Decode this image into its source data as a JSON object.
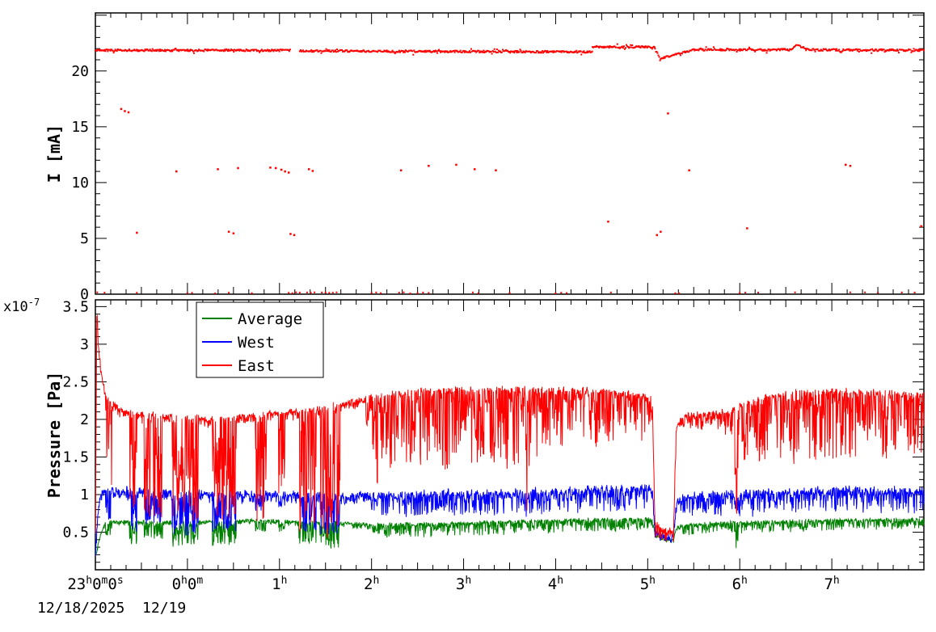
{
  "footer": {
    "date_label": "12/18/2025  12/19"
  },
  "colors": {
    "frame": "#000000",
    "background": "#ffffff",
    "east": "#ff0000",
    "west": "#0000ff",
    "average": "#008000"
  },
  "xaxis": {
    "xlim": [
      -1,
      8
    ],
    "labels": [
      {
        "x": -1,
        "parts": [
          [
            "23",
            0
          ],
          [
            "h",
            1
          ],
          [
            "0",
            0
          ],
          [
            "m",
            1
          ],
          [
            "0",
            0
          ],
          [
            "s",
            1
          ]
        ]
      },
      {
        "x": 0,
        "parts": [
          [
            "0",
            0
          ],
          [
            "h",
            1
          ],
          [
            "0",
            0
          ],
          [
            "m",
            1
          ]
        ]
      },
      {
        "x": 1,
        "parts": [
          [
            "1",
            0
          ],
          [
            "h",
            1
          ]
        ]
      },
      {
        "x": 2,
        "parts": [
          [
            "2",
            0
          ],
          [
            "h",
            1
          ]
        ]
      },
      {
        "x": 3,
        "parts": [
          [
            "3",
            0
          ],
          [
            "h",
            1
          ]
        ]
      },
      {
        "x": 4,
        "parts": [
          [
            "4",
            0
          ],
          [
            "h",
            1
          ]
        ]
      },
      {
        "x": 5,
        "parts": [
          [
            "5",
            0
          ],
          [
            "h",
            1
          ]
        ]
      },
      {
        "x": 6,
        "parts": [
          [
            "6",
            0
          ],
          [
            "h",
            1
          ]
        ]
      },
      {
        "x": 7,
        "parts": [
          [
            "7",
            0
          ],
          [
            "h",
            1
          ]
        ]
      }
    ]
  },
  "chart_data": [
    {
      "type": "scatter",
      "title": "",
      "ylabel": "I [mA]",
      "ylim": [
        0,
        25.2
      ],
      "yticks": [
        {
          "v": 0,
          "label": "0"
        },
        {
          "v": 5,
          "label": "5"
        },
        {
          "v": 10,
          "label": "10"
        },
        {
          "v": 15,
          "label": "15"
        },
        {
          "v": 20,
          "label": "20"
        }
      ],
      "color": "#ff0000",
      "band_noise": 0.09,
      "band_segments": [
        [
          -1.0,
          1.12,
          21.85,
          21.85
        ],
        [
          1.22,
          4.4,
          21.8,
          21.7
        ],
        [
          4.4,
          5.08,
          22.15,
          22.15
        ],
        [
          5.08,
          5.14,
          21.9,
          21.1
        ],
        [
          5.14,
          5.5,
          21.1,
          21.9
        ],
        [
          5.5,
          6.55,
          21.9,
          21.9
        ],
        [
          6.55,
          6.62,
          21.95,
          22.3
        ],
        [
          6.62,
          6.72,
          22.3,
          22.0
        ],
        [
          6.72,
          8.0,
          21.9,
          21.85
        ]
      ],
      "outliers": [
        [
          -0.72,
          16.6
        ],
        [
          -0.68,
          16.4
        ],
        [
          -0.64,
          16.3
        ],
        [
          -0.55,
          5.5
        ],
        [
          -0.12,
          11.0
        ],
        [
          0.33,
          11.2
        ],
        [
          0.45,
          5.6
        ],
        [
          0.5,
          5.45
        ],
        [
          0.55,
          11.3
        ],
        [
          0.9,
          11.35
        ],
        [
          0.96,
          11.3
        ],
        [
          1.02,
          11.15
        ],
        [
          1.06,
          11.0
        ],
        [
          1.1,
          10.9
        ],
        [
          1.12,
          5.4
        ],
        [
          1.16,
          5.3
        ],
        [
          1.32,
          11.2
        ],
        [
          1.36,
          11.05
        ],
        [
          2.32,
          11.1
        ],
        [
          2.62,
          11.5
        ],
        [
          2.92,
          11.6
        ],
        [
          3.12,
          11.2
        ],
        [
          3.35,
          11.1
        ],
        [
          4.57,
          6.5
        ],
        [
          5.1,
          5.3
        ],
        [
          5.14,
          5.6
        ],
        [
          5.22,
          16.2
        ],
        [
          5.45,
          11.1
        ],
        [
          6.08,
          5.9
        ],
        [
          7.15,
          11.6
        ],
        [
          7.2,
          11.5
        ],
        [
          7.97,
          6.1
        ]
      ],
      "zero_y": 0.12,
      "zero_points": [
        -0.98,
        -0.9,
        -0.55,
        0.0,
        0.05,
        0.3,
        0.45,
        0.7,
        1.1,
        1.14,
        1.18,
        1.22,
        1.3,
        1.34,
        1.38,
        1.46,
        1.5,
        1.54,
        1.58,
        1.62,
        2.0,
        2.05,
        2.1,
        2.3,
        2.35,
        2.42,
        2.5,
        2.56,
        2.62,
        3.1,
        3.16,
        3.5,
        4.0,
        4.06,
        4.12,
        4.6,
        5.3,
        5.34,
        6.0,
        6.06,
        6.2,
        6.6,
        7.2,
        7.36,
        7.5,
        7.76,
        7.9
      ]
    },
    {
      "type": "line",
      "title": "",
      "ylabel": "Pressure [Pa]",
      "scale_parts": [
        [
          "x10",
          0
        ],
        [
          "-7",
          1
        ]
      ],
      "ylim": [
        0,
        3.59
      ],
      "yticks": [
        {
          "v": 0.5,
          "label": "0.5"
        },
        {
          "v": 1.0,
          "label": "1"
        },
        {
          "v": 1.5,
          "label": "1.5"
        },
        {
          "v": 2.0,
          "label": "2"
        },
        {
          "v": 2.5,
          "label": "2.5"
        },
        {
          "v": 3.0,
          "label": "3"
        },
        {
          "v": 3.5,
          "label": "3.5"
        }
      ],
      "legend": [
        {
          "label": "Average",
          "color": "#008000"
        },
        {
          "label": "West",
          "color": "#0000ff"
        },
        {
          "label": "East",
          "color": "#ff0000"
        }
      ],
      "series": [
        {
          "name": "Average",
          "color": "#008000",
          "noise_up": 0.025,
          "trend": [
            [
              -1.0,
              0.2
            ],
            [
              -0.985,
              0.25
            ],
            [
              -0.95,
              0.45
            ],
            [
              -0.9,
              0.6
            ],
            [
              -0.85,
              0.64
            ],
            [
              0,
              0.63
            ],
            [
              0.7,
              0.66
            ],
            [
              1.2,
              0.64
            ],
            [
              1.7,
              0.62
            ],
            [
              2.0,
              0.6
            ],
            [
              3.0,
              0.62
            ],
            [
              4.0,
              0.66
            ],
            [
              5.05,
              0.68
            ],
            [
              5.08,
              0.46
            ],
            [
              5.2,
              0.41
            ],
            [
              5.28,
              0.4
            ],
            [
              5.31,
              0.56
            ],
            [
              5.4,
              0.6
            ],
            [
              6.0,
              0.63
            ],
            [
              7.0,
              0.66
            ],
            [
              8.0,
              0.67
            ]
          ],
          "hair": [
            [
              -1,
              0.05
            ],
            [
              1.95,
              0.06
            ],
            [
              2.05,
              0.18
            ],
            [
              5.0,
              0.16
            ],
            [
              5.07,
              0.06
            ],
            [
              5.3,
              0.05
            ],
            [
              5.4,
              0.15
            ],
            [
              8,
              0.13
            ]
          ]
        },
        {
          "name": "West",
          "color": "#0000ff",
          "noise_up": 0.07,
          "trend": [
            [
              -1.0,
              0.18
            ],
            [
              -0.985,
              0.5
            ],
            [
              -0.96,
              0.9
            ],
            [
              -0.93,
              1.02
            ],
            [
              -0.9,
              1.05
            ],
            [
              0,
              1.02
            ],
            [
              0.6,
              1.0
            ],
            [
              1.0,
              1.0
            ],
            [
              1.7,
              0.98
            ],
            [
              2.5,
              1.0
            ],
            [
              3.5,
              1.02
            ],
            [
              4.5,
              1.07
            ],
            [
              5.05,
              1.07
            ],
            [
              5.08,
              0.5
            ],
            [
              5.2,
              0.45
            ],
            [
              5.28,
              0.44
            ],
            [
              5.31,
              0.9
            ],
            [
              5.4,
              0.97
            ],
            [
              6.0,
              1.0
            ],
            [
              7.0,
              1.05
            ],
            [
              8.0,
              1.05
            ]
          ],
          "hair": [
            [
              -1,
              0.12
            ],
            [
              1.95,
              0.12
            ],
            [
              2.05,
              0.3
            ],
            [
              5.0,
              0.3
            ],
            [
              5.07,
              0.12
            ],
            [
              5.3,
              0.1
            ],
            [
              5.4,
              0.28
            ],
            [
              8,
              0.3
            ]
          ]
        },
        {
          "name": "East",
          "color": "#ff0000",
          "noise_up": 0.05,
          "trend": [
            [
              -1.0,
              0.5
            ],
            [
              -0.985,
              3.45
            ],
            [
              -0.96,
              2.9
            ],
            [
              -0.93,
              2.55
            ],
            [
              -0.88,
              2.3
            ],
            [
              -0.8,
              2.2
            ],
            [
              -0.7,
              2.1
            ],
            [
              -0.3,
              2.05
            ],
            [
              0.3,
              2.0
            ],
            [
              0.7,
              2.05
            ],
            [
              1.1,
              2.1
            ],
            [
              1.7,
              2.2
            ],
            [
              2.0,
              2.3
            ],
            [
              2.5,
              2.38
            ],
            [
              3.5,
              2.4
            ],
            [
              4.5,
              2.38
            ],
            [
              5.05,
              2.3
            ],
            [
              5.08,
              0.62
            ],
            [
              5.15,
              0.55
            ],
            [
              5.28,
              0.5
            ],
            [
              5.31,
              1.9
            ],
            [
              5.4,
              2.05
            ],
            [
              5.9,
              2.1
            ],
            [
              6.1,
              2.25
            ],
            [
              6.5,
              2.35
            ],
            [
              7.0,
              2.38
            ],
            [
              8.0,
              2.33
            ]
          ],
          "hair": [
            [
              -1,
              0.12
            ],
            [
              1.9,
              0.12
            ],
            [
              2.02,
              0.8
            ],
            [
              2.2,
              1.05
            ],
            [
              3.7,
              1.05
            ],
            [
              3.85,
              0.8
            ],
            [
              4.95,
              0.7
            ],
            [
              5.07,
              0.2
            ],
            [
              5.3,
              0.15
            ],
            [
              5.45,
              0.22
            ],
            [
              5.9,
              0.3
            ],
            [
              6.05,
              0.8
            ],
            [
              6.4,
              0.95
            ],
            [
              7.5,
              0.9
            ],
            [
              8,
              0.85
            ]
          ]
        }
      ],
      "events": [
        {
          "x0": -0.89,
          "x1": -0.82,
          "d": {
            "East": 0.9,
            "West": 0.62,
            "Average": 0.45
          }
        },
        {
          "x0": -0.63,
          "x1": -0.55,
          "d": {
            "East": 0.75,
            "West": 0.5,
            "Average": 0.33
          }
        },
        {
          "x0": -0.47,
          "x1": -0.27,
          "d": {
            "East": 0.7,
            "West": 0.6,
            "Average": 0.4
          }
        },
        {
          "x0": -0.17,
          "x1": 0.12,
          "d": {
            "East": 0.62,
            "West": 0.45,
            "Average": 0.3
          }
        },
        {
          "x0": 0.27,
          "x1": 0.53,
          "d": {
            "East": 0.65,
            "West": 0.5,
            "Average": 0.33
          }
        },
        {
          "x0": 0.74,
          "x1": 0.86,
          "d": {
            "East": 0.62,
            "West": 0.78,
            "Average": 0.5
          }
        },
        {
          "x0": 0.99,
          "x1": 1.06,
          "d": {
            "East": 1.0,
            "West": 0.8,
            "Average": 0.5
          }
        },
        {
          "x0": 1.21,
          "x1": 1.4,
          "d": {
            "East": 0.5,
            "West": 0.5,
            "Average": 0.34
          }
        },
        {
          "x0": 1.44,
          "x1": 1.66,
          "d": {
            "East": 0.42,
            "West": 0.45,
            "Average": 0.28
          }
        },
        {
          "x0": 2.04,
          "x1": 2.07,
          "d": {
            "East": 0.8,
            "West": 0.85,
            "Average": 0.5
          }
        },
        {
          "x0": 3.68,
          "x1": 3.72,
          "d": {
            "East": 0.55,
            "West": 0.7,
            "Average": 0.5
          }
        },
        {
          "x0": 5.94,
          "x1": 5.98,
          "d": {
            "East": 0.65,
            "West": 0.78,
            "Average": 0.25
          }
        }
      ]
    }
  ]
}
